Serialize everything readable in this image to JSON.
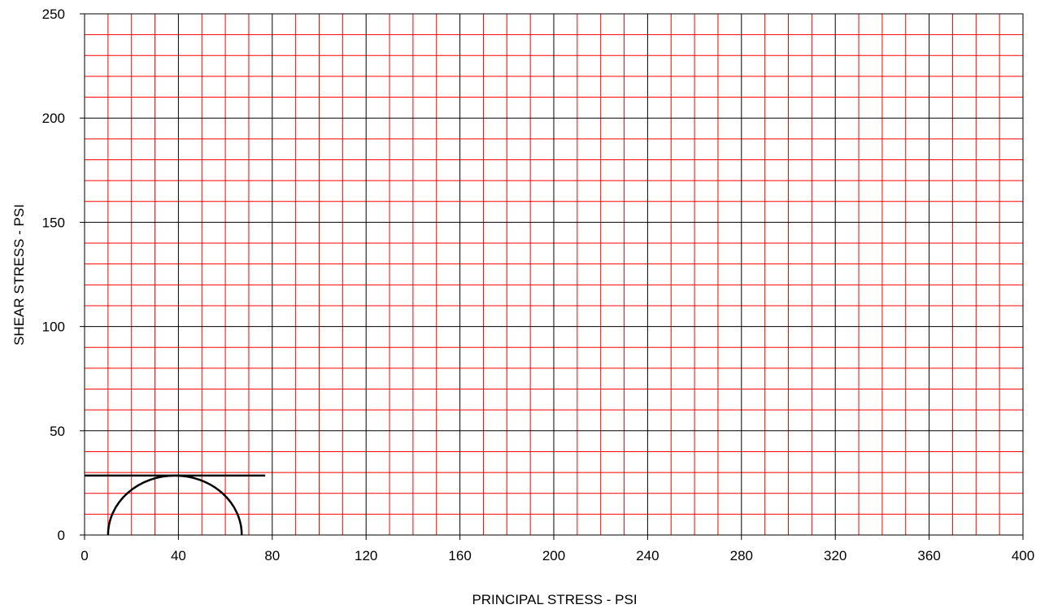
{
  "chart_data": {
    "type": "line",
    "title": "",
    "xlabel": "PRINCIPAL STRESS - PSI",
    "ylabel": "SHEAR STRESS - PSI",
    "xlim": [
      0,
      400
    ],
    "ylim": [
      0,
      250
    ],
    "x_ticks": [
      0,
      40,
      80,
      120,
      160,
      200,
      240,
      280,
      320,
      360,
      400
    ],
    "y_ticks": [
      0,
      50,
      100,
      150,
      200,
      250
    ],
    "grid": {
      "minor_x_step": 10,
      "minor_y_step": 10,
      "major_x_step": 40,
      "major_y_step": 50,
      "minor_color": "#ff0000",
      "major_color": "#000000"
    },
    "series": [
      {
        "kind": "mohr-circle",
        "center_x": 38.5,
        "radius": 28.5,
        "x_start": 10,
        "x_end": 67,
        "color": "#000000"
      },
      {
        "kind": "horizontal-line",
        "y": 28.5,
        "x_start": 0,
        "x_end": 77,
        "color": "#000000"
      }
    ]
  }
}
